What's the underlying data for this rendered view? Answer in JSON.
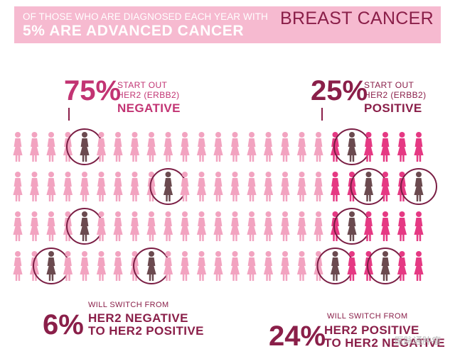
{
  "banner": {
    "line1": "OF THOSE WHO ARE DIAGNOSED EACH YEAR WITH",
    "title": "BREAST CANCER",
    "line2": "5% ARE ADVANCED CANCER"
  },
  "left_stat": {
    "percent": "75%",
    "line1": "START OUT",
    "line2": "HER2 (ERBB2)",
    "line3": "NEGATIVE"
  },
  "right_stat": {
    "percent": "25%",
    "line1": "START OUT",
    "line2": "HER2 (ERBB2)",
    "line3": "POSITIVE"
  },
  "bottom_left": {
    "line1": "WILL SWITCH FROM",
    "percent": "6%",
    "line2": "HER2 NEGATIVE",
    "line3": "TO HER2 POSITIVE"
  },
  "bottom_right": {
    "line1": "WILL SWITCH FROM",
    "percent": "24%",
    "line2": "HER2 POSITIVE",
    "line3": "TO HER2 NEGATIVE"
  },
  "watermark": "医脉通肿瘤",
  "grid": {
    "rows": 4,
    "cols": 25,
    "negative_cols": 19,
    "highlighted": [
      [
        0,
        4
      ],
      [
        0,
        20
      ],
      [
        1,
        9
      ],
      [
        1,
        21
      ],
      [
        1,
        24
      ],
      [
        2,
        4
      ],
      [
        2,
        20
      ],
      [
        3,
        2
      ],
      [
        3,
        8
      ],
      [
        3,
        19
      ],
      [
        3,
        22
      ]
    ],
    "colors": {
      "negative": "#f2a3c0",
      "positive": "#e53983",
      "highlight": "#6b4a4f",
      "ring": "#7a1e44"
    }
  }
}
